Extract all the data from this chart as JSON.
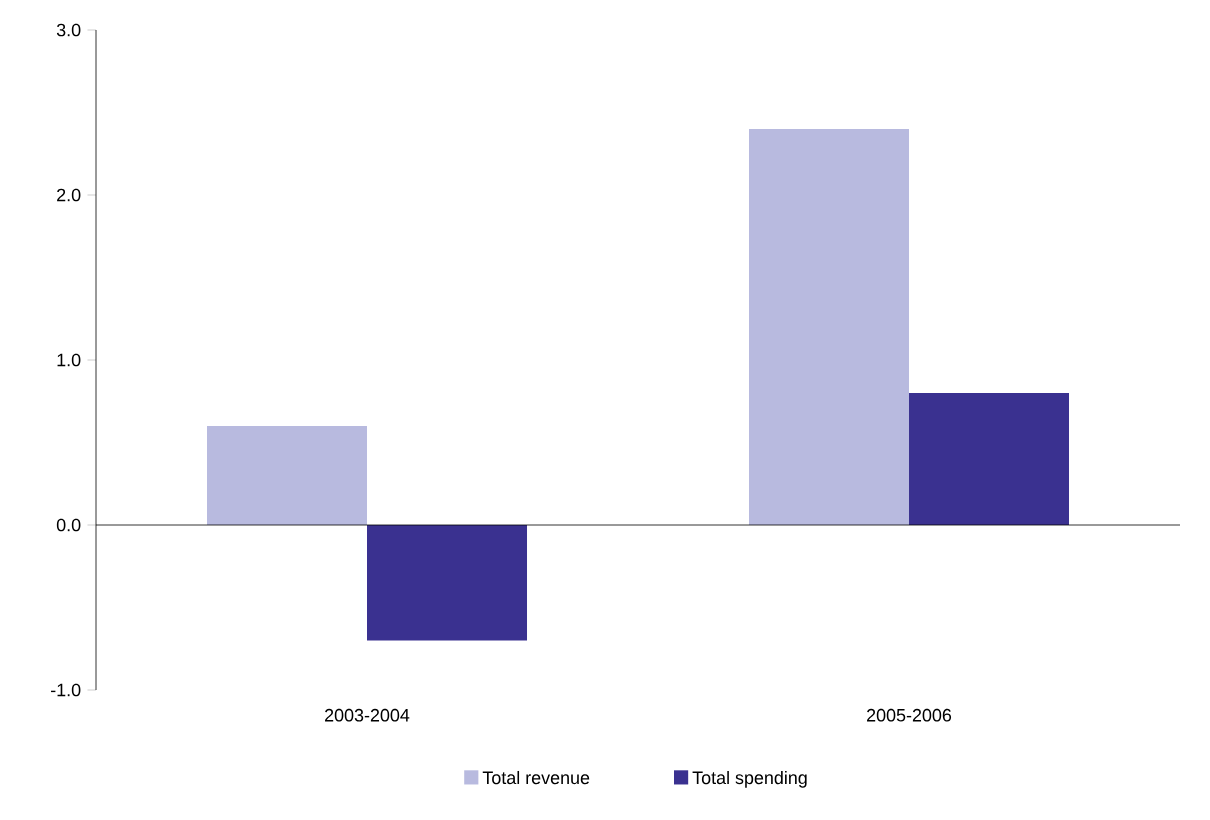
{
  "chart_data": {
    "type": "bar",
    "categories": [
      "2003-2004",
      "2005-2006"
    ],
    "series": [
      {
        "name": "Total revenue",
        "color": "#b8badf",
        "values": [
          0.6,
          2.4
        ]
      },
      {
        "name": "Total spending",
        "color": "#3a3190",
        "values": [
          -0.7,
          0.8
        ]
      }
    ],
    "ylim": [
      -1,
      3
    ],
    "yticks": [
      {
        "value": -1,
        "label": "-1.0"
      },
      {
        "value": 0,
        "label": "0.0"
      },
      {
        "value": 1,
        "label": "1.0"
      },
      {
        "value": 2,
        "label": "2.0"
      },
      {
        "value": 3,
        "label": "3.0"
      }
    ],
    "legend": "bottom"
  }
}
